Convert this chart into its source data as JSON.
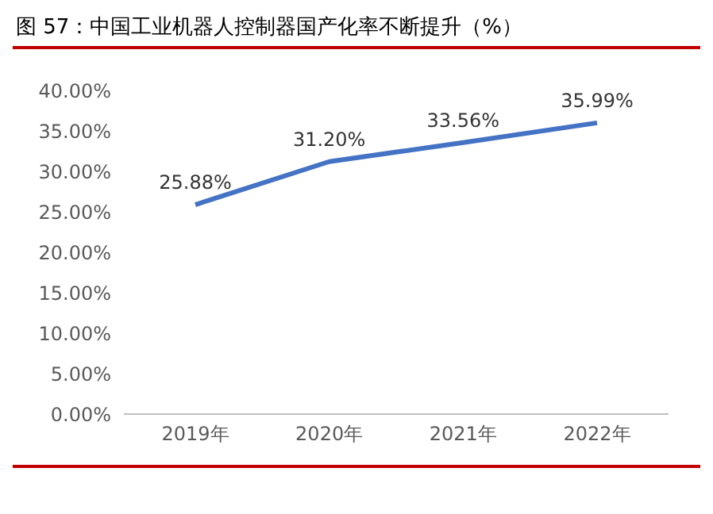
{
  "chart_data": {
    "type": "line",
    "title": "图 57：中国工业机器人控制器国产化率不断提升（%）",
    "categories": [
      "2019年",
      "2020年",
      "2021年",
      "2022年"
    ],
    "series": [
      {
        "color": "#4472c4",
        "values": [
          25.88,
          31.2,
          33.56,
          35.99
        ],
        "value_labels": [
          "25.88%",
          "31.20%",
          "33.56%",
          "35.99%"
        ]
      }
    ],
    "ylim": [
      0,
      40
    ],
    "yticks": [
      {
        "value": 0,
        "label": "0.00%"
      },
      {
        "value": 5,
        "label": "5.00%"
      },
      {
        "value": 10,
        "label": "10.00%"
      },
      {
        "value": 15,
        "label": "15.00%"
      },
      {
        "value": 20,
        "label": "20.00%"
      },
      {
        "value": 25,
        "label": "25.00%"
      },
      {
        "value": 30,
        "label": "30.00%"
      },
      {
        "value": 35,
        "label": "35.00%"
      },
      {
        "value": 40,
        "label": "40.00%"
      }
    ],
    "grid": false,
    "legend": false,
    "marker": "none",
    "line_style": "solid"
  }
}
